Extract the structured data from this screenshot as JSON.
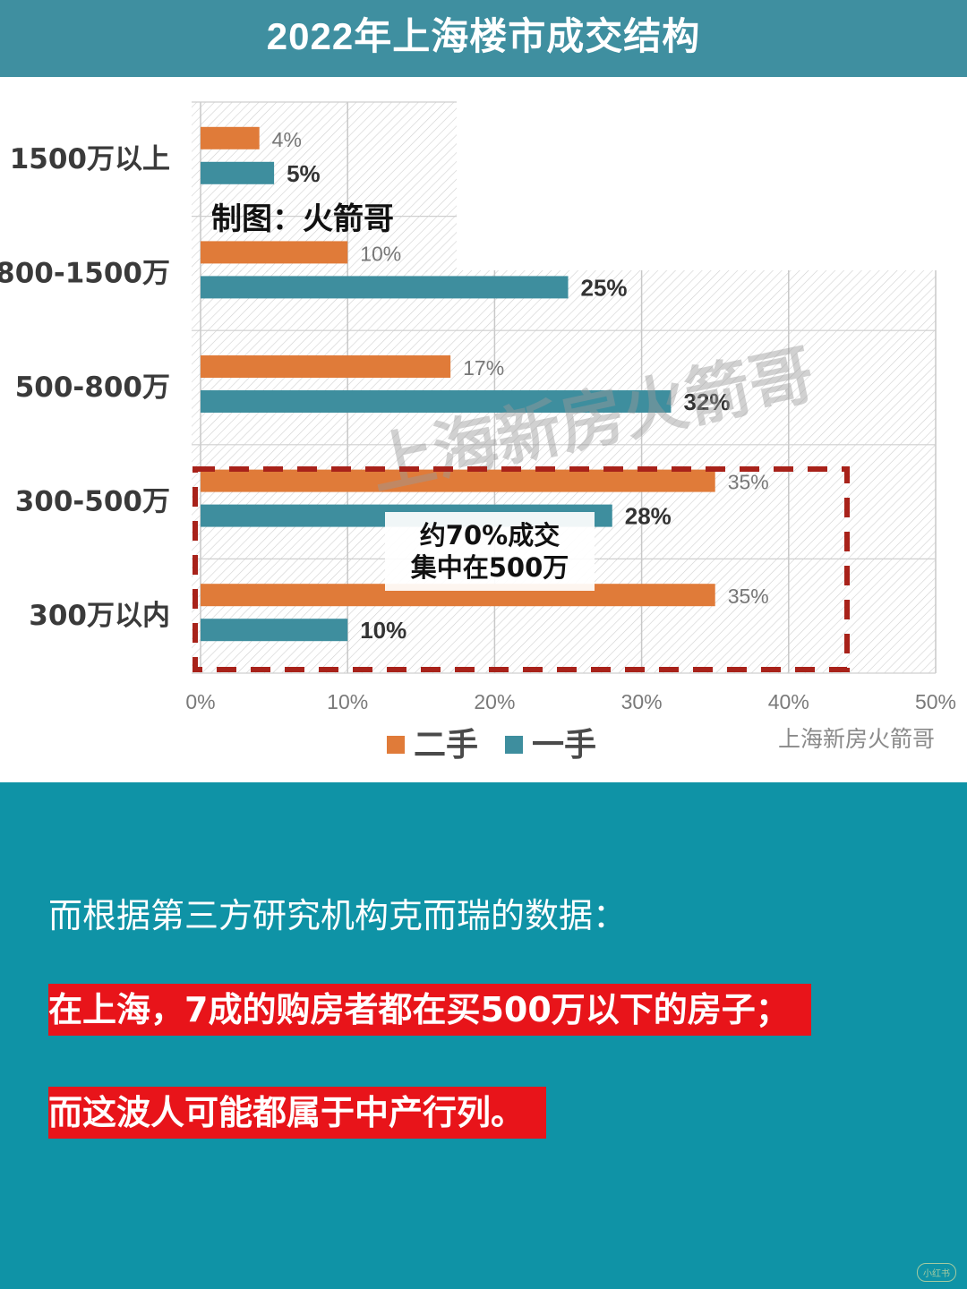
{
  "header": {
    "title": "2022年上海楼市成交结构"
  },
  "chart_data": {
    "type": "bar",
    "orientation": "horizontal",
    "categories": [
      "1500万以上",
      "800-1500万",
      "500-800万",
      "300-500万",
      "300万以内"
    ],
    "series": [
      {
        "name": "二手",
        "color": "#e07b39",
        "values": [
          4,
          10,
          17,
          35,
          35
        ],
        "labels": [
          "4%",
          "10%",
          "17%",
          "35%",
          "35%"
        ]
      },
      {
        "name": "一手",
        "color": "#3e8e9e",
        "values": [
          5,
          25,
          32,
          28,
          10
        ],
        "labels": [
          "5%",
          "25%",
          "32%",
          "28%",
          "10%"
        ]
      }
    ],
    "xlim": [
      0,
      50
    ],
    "xticks": [
      "0%",
      "10%",
      "20%",
      "30%",
      "40%",
      "50%"
    ],
    "grid": true,
    "legend_position": "bottom",
    "annotations": {
      "maker": "制图：火箭哥",
      "box_line1": "约70%成交",
      "box_line2": "集中在500万",
      "watermark": "上海新房火箭哥",
      "source": "上海新房火箭哥"
    }
  },
  "caption": {
    "intro": "而根据第三方研究机构克而瑞的数据：",
    "highlight1": "在上海，7成的购房者都在买500万以下的房子；",
    "highlight2": "而这波人可能都属于中产行列。"
  },
  "badge": "小红书"
}
